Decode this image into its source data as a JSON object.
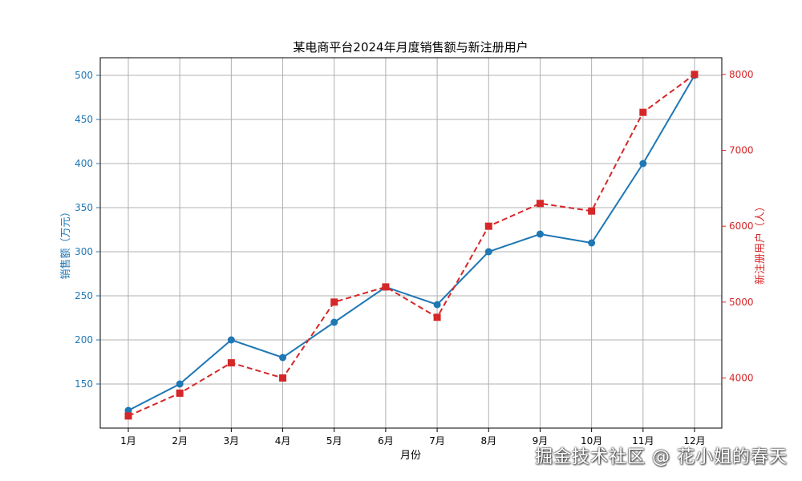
{
  "chart_data": {
    "type": "line",
    "title": "某电商平台2024年月度销售额与新注册用户",
    "xlabel": "月份",
    "ylabel_left": "销售额（万元）",
    "ylabel_right": "新注册用户（人）",
    "categories": [
      "1月",
      "2月",
      "3月",
      "4月",
      "5月",
      "6月",
      "7月",
      "8月",
      "9月",
      "10月",
      "11月",
      "12月"
    ],
    "left_axis": {
      "ticks": [
        150,
        200,
        250,
        300,
        350,
        400,
        450,
        500
      ],
      "ylim": [
        100,
        520
      ]
    },
    "right_axis": {
      "ticks": [
        4000,
        5000,
        6000,
        7000,
        8000
      ],
      "ylim": [
        3340,
        8220
      ]
    },
    "grid": true,
    "series": [
      {
        "axis": "left",
        "color": "#1f77b4",
        "marker": "circle",
        "linestyle": "solid",
        "values": [
          120,
          150,
          200,
          180,
          220,
          260,
          240,
          300,
          320,
          310,
          400,
          500
        ]
      },
      {
        "axis": "right",
        "color": "#d62728",
        "marker": "square",
        "linestyle": "dashed",
        "values": [
          3500,
          3800,
          4200,
          4000,
          5000,
          5200,
          4800,
          6000,
          6300,
          6200,
          7500,
          8000
        ]
      }
    ]
  },
  "watermark": "掘金技术社区 @ 花小姐的春天"
}
